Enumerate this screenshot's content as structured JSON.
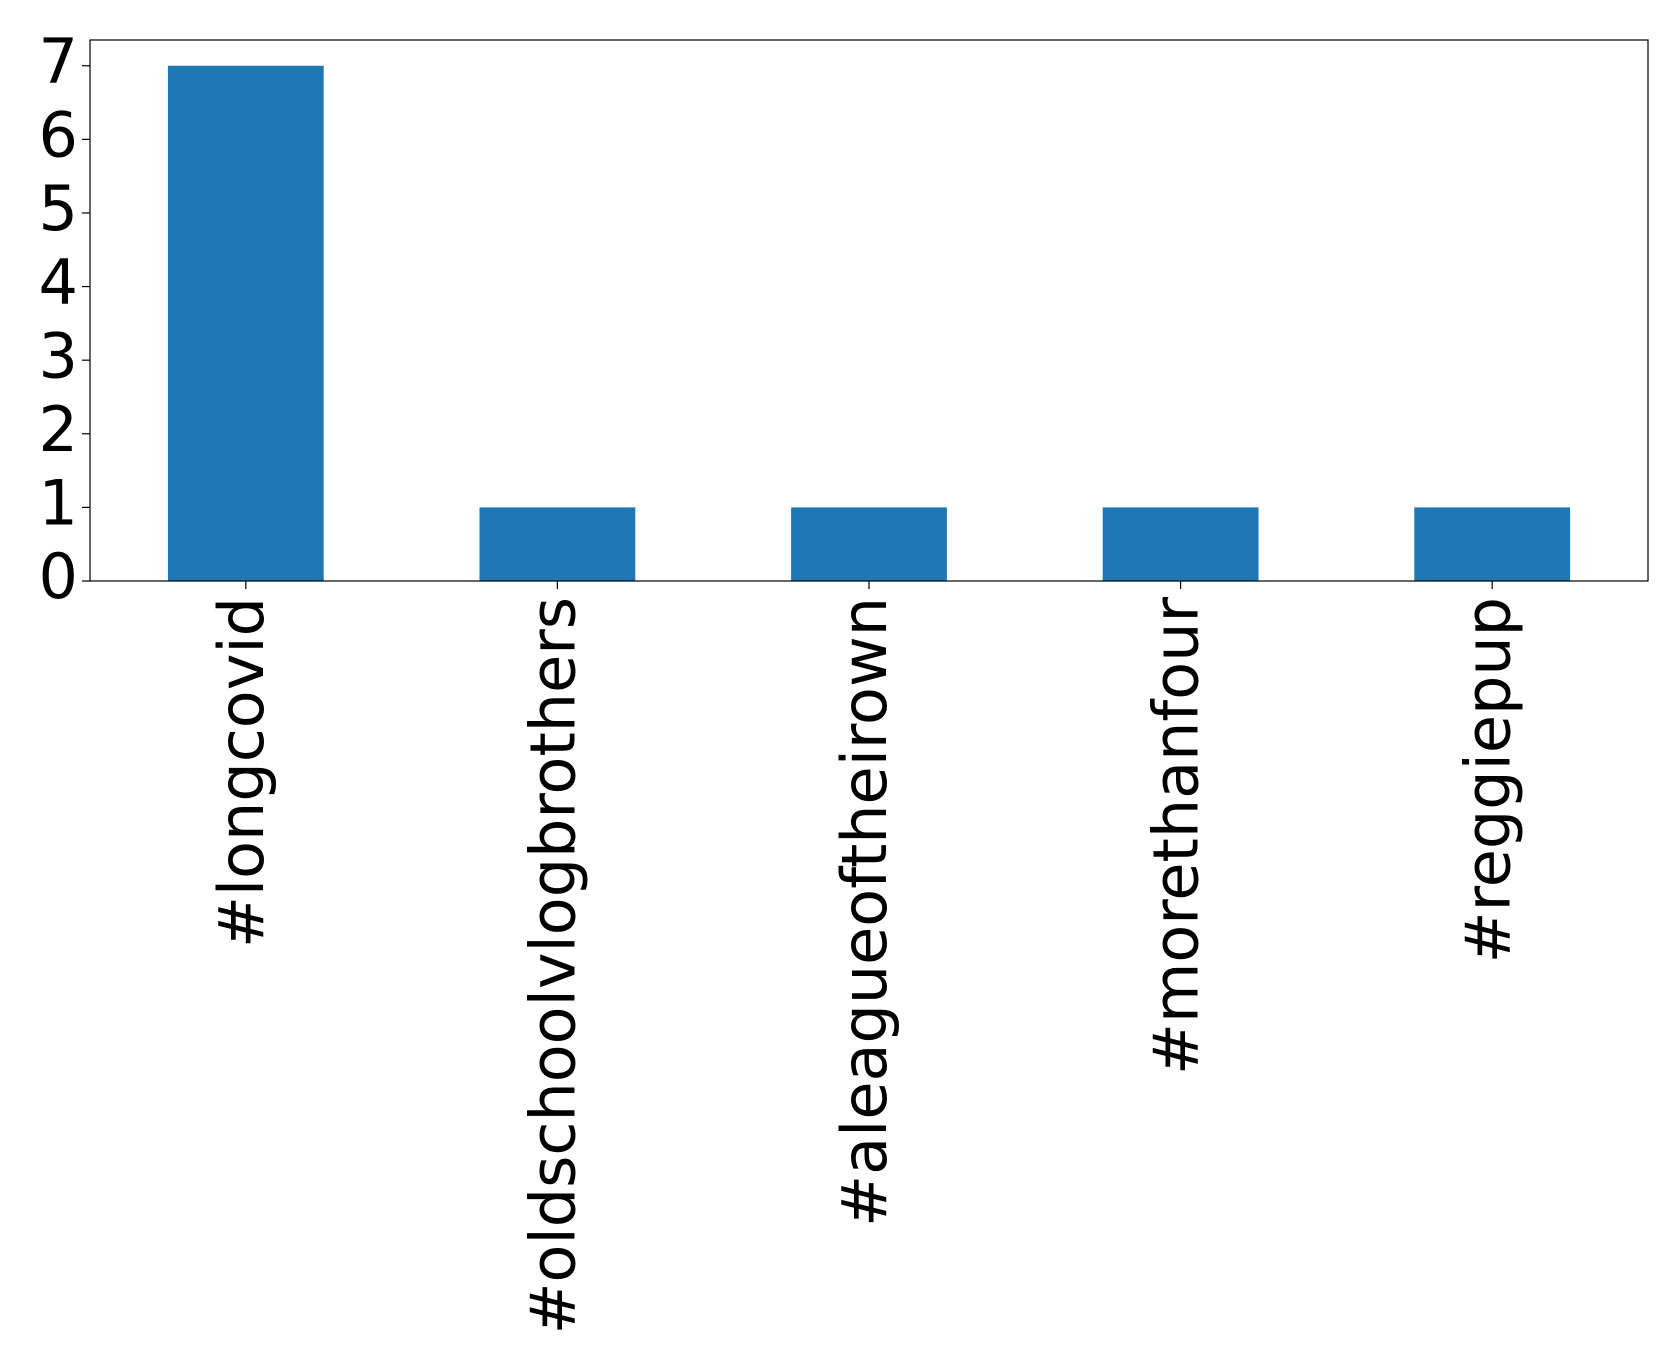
{
  "chart_data": {
    "type": "bar",
    "categories": [
      "#longcovid",
      "#oldschoolvlogbrothers",
      "#aleagueoftheirown",
      "#morethanfour",
      "#reggiepup"
    ],
    "values": [
      7,
      1,
      1,
      1,
      1
    ],
    "color": "#1f77b4",
    "ylim": [
      0,
      7.35
    ],
    "yticks": [
      0,
      1,
      2,
      3,
      4,
      5,
      6,
      7
    ],
    "grid": false
  }
}
